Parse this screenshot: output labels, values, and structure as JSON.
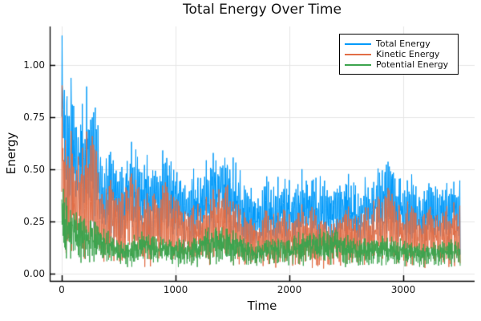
{
  "chart_data": {
    "type": "line",
    "title": "Total Energy Over Time",
    "xlabel": "Time",
    "ylabel": "Energy",
    "time_range": [
      0,
      3500
    ],
    "xlim": [
      -105,
      3660
    ],
    "ylim": [
      -0.035,
      1.19
    ],
    "grid": true,
    "legend_position": "top-right",
    "xticks": {
      "values": [
        0,
        1000,
        2000,
        3000
      ],
      "labels": [
        "0",
        "1000",
        "2000",
        "3000"
      ]
    },
    "yticks": {
      "values": [
        0,
        0.25,
        0.5,
        0.75,
        1.0
      ],
      "labels": [
        "0.00",
        "0.25",
        "0.50",
        "0.75",
        "1.00"
      ]
    },
    "colors": {
      "grid": "#e6e6e6",
      "axis": "#000000",
      "tick_text": "#1c1c1c",
      "background": "#ffffff"
    },
    "series": [
      {
        "name": "Total Energy",
        "color": "#009AFA",
        "representation": "noisy oscillating series; upper peak envelope keyframes [t, energy]",
        "floor": 0.05,
        "envelope": [
          [
            0,
            1.15
          ],
          [
            15,
            1.02
          ],
          [
            40,
            0.95
          ],
          [
            80,
            0.9
          ],
          [
            120,
            0.8
          ],
          [
            180,
            0.78
          ],
          [
            230,
            0.87
          ],
          [
            270,
            0.85
          ],
          [
            320,
            0.7
          ],
          [
            400,
            0.56
          ],
          [
            450,
            0.55
          ],
          [
            520,
            0.47
          ],
          [
            600,
            0.62
          ],
          [
            650,
            0.58
          ],
          [
            700,
            0.5
          ],
          [
            800,
            0.48
          ],
          [
            900,
            0.54
          ],
          [
            1000,
            0.52
          ],
          [
            1080,
            0.45
          ],
          [
            1150,
            0.42
          ],
          [
            1250,
            0.47
          ],
          [
            1350,
            0.54
          ],
          [
            1430,
            0.57
          ],
          [
            1500,
            0.5
          ],
          [
            1600,
            0.4
          ],
          [
            1700,
            0.36
          ],
          [
            1800,
            0.4
          ],
          [
            1900,
            0.42
          ],
          [
            2000,
            0.38
          ],
          [
            2100,
            0.45
          ],
          [
            2200,
            0.43
          ],
          [
            2300,
            0.4
          ],
          [
            2400,
            0.37
          ],
          [
            2500,
            0.42
          ],
          [
            2600,
            0.4
          ],
          [
            2700,
            0.43
          ],
          [
            2800,
            0.47
          ],
          [
            2870,
            0.52
          ],
          [
            2950,
            0.46
          ],
          [
            3050,
            0.44
          ],
          [
            3150,
            0.38
          ],
          [
            3250,
            0.41
          ],
          [
            3350,
            0.43
          ],
          [
            3450,
            0.46
          ],
          [
            3500,
            0.41
          ]
        ]
      },
      {
        "name": "Kinetic Energy",
        "color": "#E26E46",
        "representation": "noisy oscillating series just below Total Energy; kinetic = total - potential at each instant",
        "floor": 0.03,
        "envelope_rule": "total_envelope - 0.5 * potential_envelope"
      },
      {
        "name": "Potential Energy",
        "color": "#3CA44E",
        "representation": "low-amplitude noisy band; upper peak envelope keyframes [t, energy]",
        "floor": 0.01,
        "envelope": [
          [
            0,
            0.45
          ],
          [
            60,
            0.35
          ],
          [
            120,
            0.3
          ],
          [
            200,
            0.28
          ],
          [
            300,
            0.25
          ],
          [
            400,
            0.2
          ],
          [
            500,
            0.15
          ],
          [
            600,
            0.16
          ],
          [
            700,
            0.2
          ],
          [
            800,
            0.18
          ],
          [
            900,
            0.18
          ],
          [
            1000,
            0.17
          ],
          [
            1100,
            0.15
          ],
          [
            1200,
            0.18
          ],
          [
            1300,
            0.22
          ],
          [
            1400,
            0.23
          ],
          [
            1500,
            0.2
          ],
          [
            1600,
            0.16
          ],
          [
            1700,
            0.15
          ],
          [
            1800,
            0.17
          ],
          [
            1900,
            0.18
          ],
          [
            2000,
            0.16
          ],
          [
            2100,
            0.2
          ],
          [
            2200,
            0.19
          ],
          [
            2300,
            0.21
          ],
          [
            2400,
            0.22
          ],
          [
            2500,
            0.18
          ],
          [
            2600,
            0.16
          ],
          [
            2700,
            0.17
          ],
          [
            2800,
            0.18
          ],
          [
            2900,
            0.17
          ],
          [
            3000,
            0.16
          ],
          [
            3100,
            0.14
          ],
          [
            3200,
            0.14
          ],
          [
            3300,
            0.15
          ],
          [
            3400,
            0.16
          ],
          [
            3500,
            0.15
          ]
        ]
      }
    ]
  },
  "legend": {
    "entries": [
      {
        "label": "Total Energy",
        "color": "#009AFA"
      },
      {
        "label": "Kinetic Energy",
        "color": "#E26E46"
      },
      {
        "label": "Potential Energy",
        "color": "#3CA44E"
      }
    ]
  }
}
